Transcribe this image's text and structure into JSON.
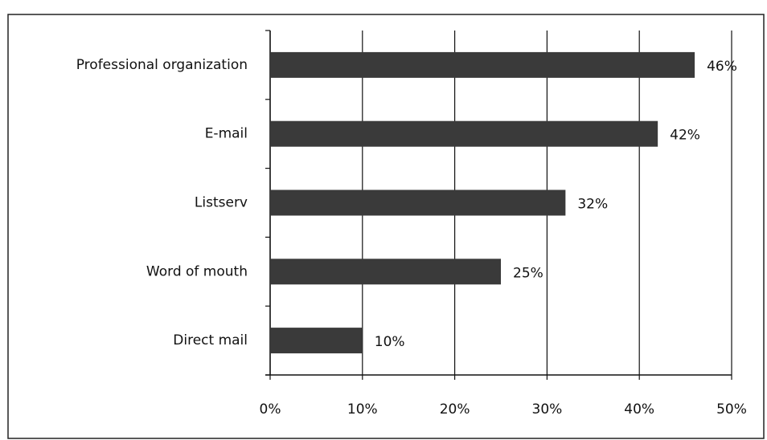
{
  "chart_data": {
    "type": "bar",
    "orientation": "horizontal",
    "categories": [
      "Professional organization",
      "E-mail",
      "Listserv",
      "Word of mouth",
      "Direct mail"
    ],
    "values": [
      46,
      42,
      32,
      25,
      10
    ],
    "value_labels": [
      "46%",
      "42%",
      "32%",
      "25%",
      "10%"
    ],
    "color": "#3a3a3a",
    "xlim": [
      0,
      50
    ],
    "xticks": [
      {
        "value": 0,
        "label": "0%"
      },
      {
        "value": 10,
        "label": "10%"
      },
      {
        "value": 20,
        "label": "20%"
      },
      {
        "value": 30,
        "label": "30%"
      },
      {
        "value": 40,
        "label": "40%"
      },
      {
        "value": 50,
        "label": "50%"
      }
    ],
    "grid": true
  }
}
